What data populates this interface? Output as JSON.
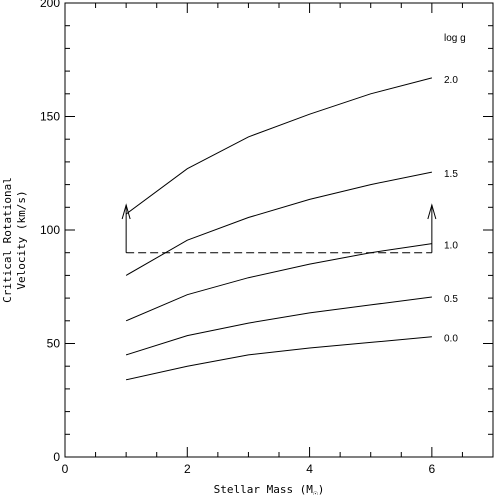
{
  "chart_data": {
    "type": "line",
    "title": "",
    "xlabel": "Stellar Mass (M",
    "xlabel_suffix": ")",
    "xlabel_symbol": "☉",
    "ylabel_line1": "Critical Rotational",
    "ylabel_line2": "Velocity (km/s)",
    "xlim": [
      0,
      7
    ],
    "ylim": [
      0,
      200
    ],
    "x_ticks": [
      0,
      2,
      4,
      6
    ],
    "y_ticks": [
      0,
      50,
      100,
      150,
      200
    ],
    "x_tick_labels": [
      "0",
      "2",
      "4",
      "6"
    ],
    "y_tick_labels": [
      "0",
      "50",
      "100",
      "150",
      "200"
    ],
    "legend_title": "log g",
    "grid": false,
    "series": [
      {
        "name": "2.0",
        "x": [
          1,
          2,
          3,
          4,
          5,
          6
        ],
        "y": [
          107,
          127,
          141,
          151,
          160,
          167
        ]
      },
      {
        "name": "1.5",
        "x": [
          1,
          2,
          3,
          4,
          5,
          6
        ],
        "y": [
          80,
          95.5,
          105.5,
          113.5,
          120,
          125.5
        ]
      },
      {
        "name": "1.0",
        "x": [
          1,
          2,
          3,
          4,
          5,
          6
        ],
        "y": [
          60,
          71.5,
          79,
          85,
          90,
          94
        ]
      },
      {
        "name": "0.5",
        "x": [
          1,
          2,
          3,
          4,
          5,
          6
        ],
        "y": [
          45,
          53.5,
          59,
          63.5,
          67,
          70.5
        ]
      },
      {
        "name": "0.0",
        "x": [
          1,
          2,
          3,
          4,
          5,
          6
        ],
        "y": [
          34,
          40,
          45,
          48,
          50.5,
          53
        ]
      }
    ],
    "annotations": {
      "dashed_line": {
        "x": [
          1,
          6
        ],
        "y": 90
      },
      "arrows": [
        {
          "x": 1,
          "y_from": 90,
          "y_to": 111
        },
        {
          "x": 6,
          "y_from": 90,
          "y_to": 111
        }
      ]
    }
  }
}
